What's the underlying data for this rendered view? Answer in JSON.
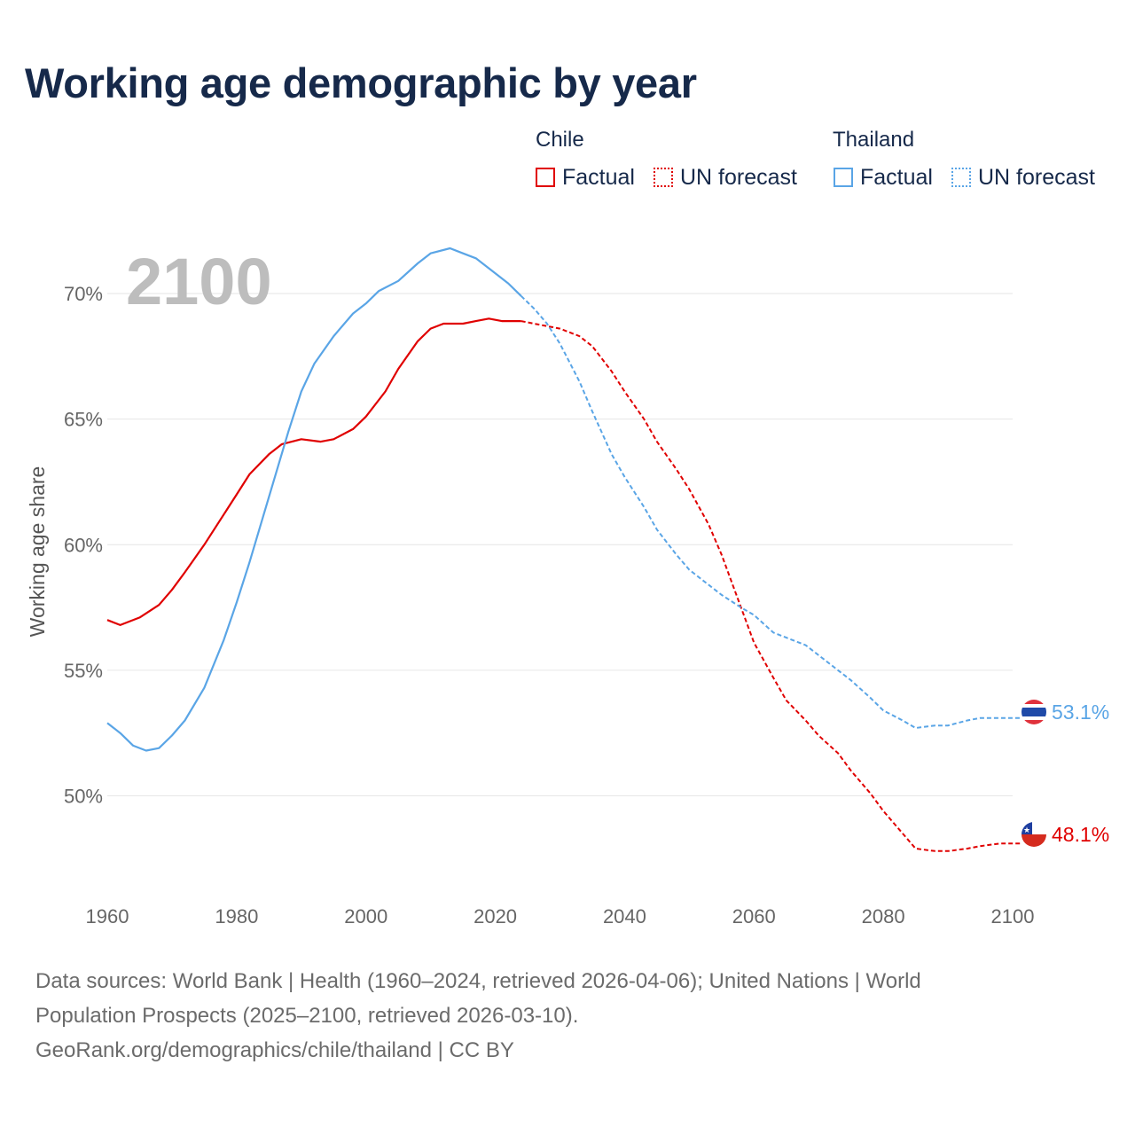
{
  "title": "Working age demographic by year",
  "legend": {
    "chile": {
      "group": "Chile",
      "factual": "Factual",
      "forecast": "UN forecast",
      "color": "#e00000"
    },
    "thailand": {
      "group": "Thailand",
      "factual": "Factual",
      "forecast": "UN forecast",
      "color": "#5aa5e6"
    }
  },
  "footer": {
    "line1": "Data sources: World Bank | Health (1960–2024, retrieved 2026-04-06); United Nations | World",
    "line2": "Population Prospects (2025–2100, retrieved 2026-03-10).",
    "line3": "GeoRank.org/demographics/chile/thailand | CC BY"
  },
  "chart_data": {
    "type": "line",
    "title": "Working age demographic by year",
    "ylabel": "Working age share",
    "xlabel": "",
    "year_watermark": "2100",
    "xlim": [
      1960,
      2100
    ],
    "ylim": [
      46.1,
      73.6
    ],
    "x_ticks": [
      1960,
      1980,
      2000,
      2020,
      2040,
      2060,
      2080,
      2100
    ],
    "x_tick_labels": [
      "1960",
      "1980",
      "2000",
      "2020",
      "2040",
      "2060",
      "2080",
      "2100"
    ],
    "y_ticks": [
      50,
      55,
      60,
      65,
      70
    ],
    "y_tick_labels": [
      "50%",
      "55%",
      "60%",
      "65%",
      "70%"
    ],
    "grid": true,
    "factual_until": 2024,
    "series": [
      {
        "name": "Chile",
        "color": "#e00000",
        "end_label": "48.1%",
        "points": [
          [
            1960,
            57.0
          ],
          [
            1962,
            56.8
          ],
          [
            1965,
            57.1
          ],
          [
            1968,
            57.6
          ],
          [
            1970,
            58.2
          ],
          [
            1972,
            58.9
          ],
          [
            1975,
            60.0
          ],
          [
            1978,
            61.2
          ],
          [
            1980,
            62.0
          ],
          [
            1982,
            62.8
          ],
          [
            1985,
            63.6
          ],
          [
            1987,
            64.0
          ],
          [
            1990,
            64.2
          ],
          [
            1993,
            64.1
          ],
          [
            1995,
            64.2
          ],
          [
            1998,
            64.6
          ],
          [
            2000,
            65.1
          ],
          [
            2003,
            66.1
          ],
          [
            2005,
            67.0
          ],
          [
            2008,
            68.1
          ],
          [
            2010,
            68.6
          ],
          [
            2012,
            68.8
          ],
          [
            2015,
            68.8
          ],
          [
            2017,
            68.9
          ],
          [
            2019,
            69.0
          ],
          [
            2021,
            68.9
          ],
          [
            2024,
            68.9
          ],
          [
            2026,
            68.8
          ],
          [
            2030,
            68.6
          ],
          [
            2033,
            68.3
          ],
          [
            2035,
            67.9
          ],
          [
            2038,
            66.9
          ],
          [
            2040,
            66.1
          ],
          [
            2043,
            65.0
          ],
          [
            2045,
            64.1
          ],
          [
            2048,
            63.0
          ],
          [
            2050,
            62.2
          ],
          [
            2053,
            60.8
          ],
          [
            2055,
            59.6
          ],
          [
            2058,
            57.5
          ],
          [
            2060,
            56.1
          ],
          [
            2063,
            54.7
          ],
          [
            2065,
            53.8
          ],
          [
            2068,
            53.0
          ],
          [
            2070,
            52.4
          ],
          [
            2073,
            51.7
          ],
          [
            2075,
            51.0
          ],
          [
            2078,
            50.1
          ],
          [
            2080,
            49.4
          ],
          [
            2083,
            48.5
          ],
          [
            2085,
            47.9
          ],
          [
            2088,
            47.8
          ],
          [
            2090,
            47.8
          ],
          [
            2093,
            47.9
          ],
          [
            2095,
            48.0
          ],
          [
            2098,
            48.1
          ],
          [
            2100,
            48.1
          ]
        ]
      },
      {
        "name": "Thailand",
        "color": "#5aa5e6",
        "end_label": "53.1%",
        "points": [
          [
            1960,
            52.9
          ],
          [
            1962,
            52.5
          ],
          [
            1964,
            52.0
          ],
          [
            1966,
            51.8
          ],
          [
            1968,
            51.9
          ],
          [
            1970,
            52.4
          ],
          [
            1972,
            53.0
          ],
          [
            1975,
            54.3
          ],
          [
            1978,
            56.2
          ],
          [
            1980,
            57.7
          ],
          [
            1982,
            59.3
          ],
          [
            1985,
            61.9
          ],
          [
            1988,
            64.5
          ],
          [
            1990,
            66.1
          ],
          [
            1992,
            67.2
          ],
          [
            1995,
            68.3
          ],
          [
            1998,
            69.2
          ],
          [
            2000,
            69.6
          ],
          [
            2002,
            70.1
          ],
          [
            2005,
            70.5
          ],
          [
            2008,
            71.2
          ],
          [
            2010,
            71.6
          ],
          [
            2013,
            71.8
          ],
          [
            2015,
            71.6
          ],
          [
            2017,
            71.4
          ],
          [
            2020,
            70.8
          ],
          [
            2022,
            70.4
          ],
          [
            2024,
            69.9
          ],
          [
            2026,
            69.4
          ],
          [
            2028,
            68.8
          ],
          [
            2030,
            68.0
          ],
          [
            2033,
            66.5
          ],
          [
            2035,
            65.3
          ],
          [
            2038,
            63.6
          ],
          [
            2040,
            62.7
          ],
          [
            2043,
            61.5
          ],
          [
            2045,
            60.6
          ],
          [
            2048,
            59.6
          ],
          [
            2050,
            59.0
          ],
          [
            2053,
            58.4
          ],
          [
            2055,
            58.0
          ],
          [
            2058,
            57.5
          ],
          [
            2060,
            57.2
          ],
          [
            2063,
            56.5
          ],
          [
            2065,
            56.3
          ],
          [
            2068,
            56.0
          ],
          [
            2070,
            55.6
          ],
          [
            2073,
            55.0
          ],
          [
            2075,
            54.6
          ],
          [
            2078,
            53.9
          ],
          [
            2080,
            53.4
          ],
          [
            2083,
            53.0
          ],
          [
            2085,
            52.7
          ],
          [
            2088,
            52.8
          ],
          [
            2090,
            52.8
          ],
          [
            2093,
            53.0
          ],
          [
            2095,
            53.1
          ],
          [
            2098,
            53.1
          ],
          [
            2100,
            53.1
          ]
        ]
      }
    ]
  }
}
